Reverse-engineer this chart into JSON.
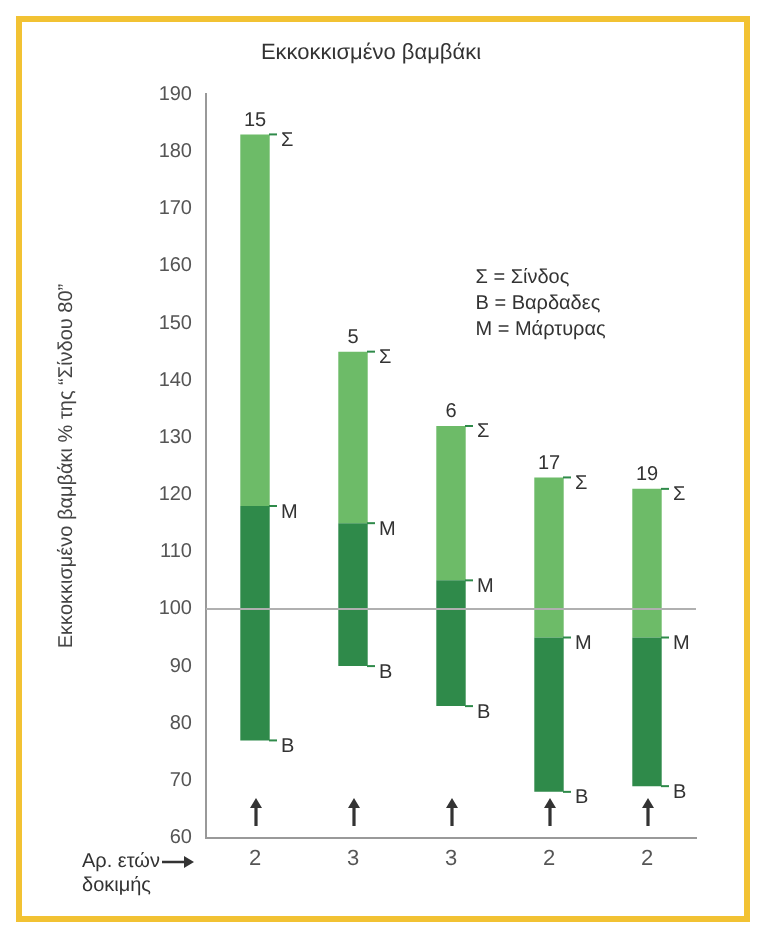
{
  "chart_data": {
    "type": "bar",
    "title": "Εκκοκκισμένο βαμβάκι",
    "xlabel": "Αρ. ετών δοκιμής",
    "ylabel": "Εκκοκκισμένο βαμβάκι % της “Σίνδου 80”",
    "categories": [
      "2",
      "3",
      "3",
      "2",
      "2"
    ],
    "series": [
      {
        "color": "#2f8a4a",
        "base": [
          77,
          90,
          83,
          68,
          69
        ],
        "values": [
          41,
          25,
          22,
          27,
          26
        ]
      },
      {
        "color": "#6dbb68",
        "base": [
          118,
          115,
          105,
          95,
          95
        ],
        "values": [
          65,
          30,
          27,
          28,
          26
        ]
      }
    ],
    "ylim": [
      60,
      190
    ],
    "yticks": [
      60,
      70,
      80,
      90,
      100,
      110,
      120,
      130,
      140,
      150,
      160,
      170,
      180,
      190
    ],
    "grid": false,
    "legend": false,
    "ref_lines": [
      {
        "axis": "y",
        "value": 100,
        "color": "#b0b0b0"
      }
    ],
    "annotations": [
      "Σ = Σίνδος",
      "Β = Βαρδαδες",
      "Μ = Μάρτυρας",
      "15",
      "Σ",
      "Μ",
      "Β",
      "5",
      "Σ",
      "Μ",
      "Β",
      "6",
      "Σ",
      "Μ",
      "Β",
      "17",
      "Σ",
      "Μ",
      "Β",
      "19",
      "Σ",
      "Μ",
      "Β"
    ]
  }
}
